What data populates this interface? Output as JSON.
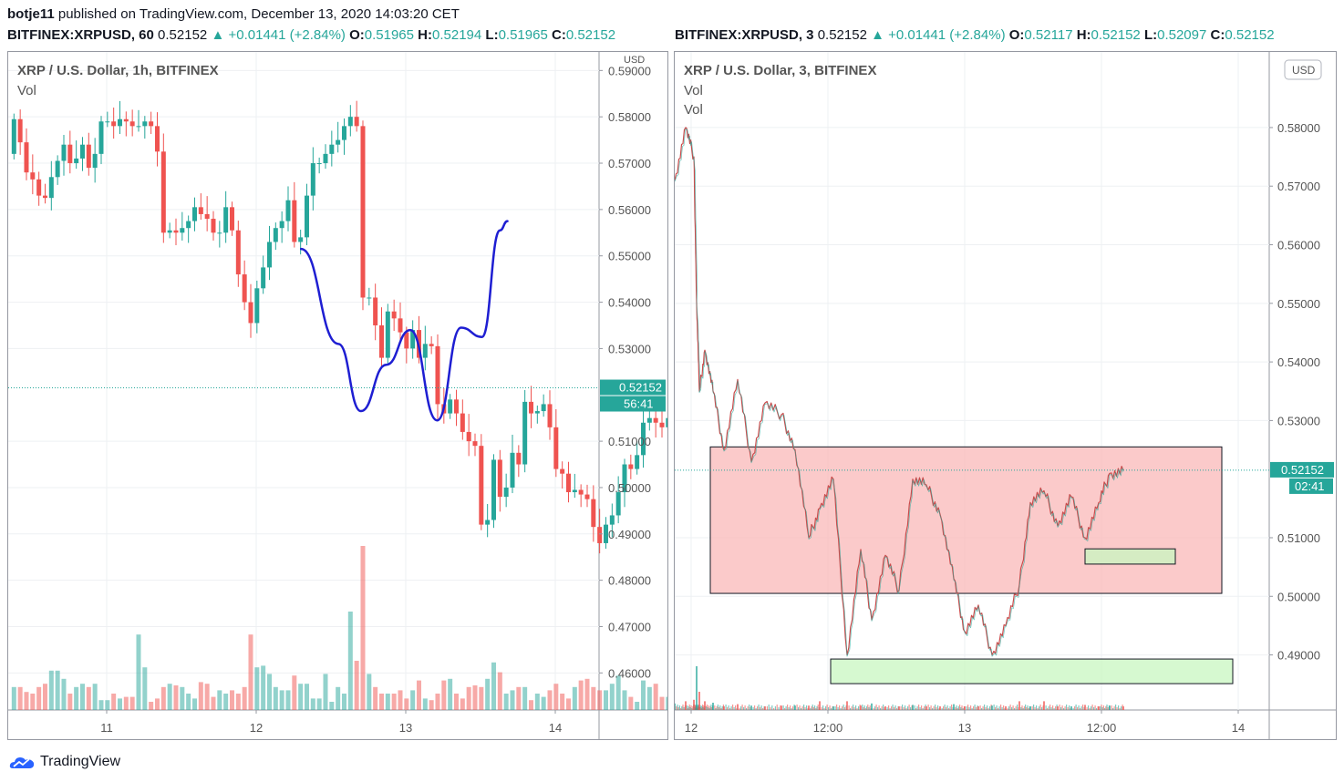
{
  "header": {
    "user": "botje11",
    "published_text": "published on TradingView.com, December 13, 2020 14:03:20 CET"
  },
  "footer": {
    "brand": "TradingView"
  },
  "left": {
    "ticker": {
      "symbol": "BITFINEX:XRPUSD, 60",
      "price": "0.52152",
      "change": "+0.01441 (+2.84%)",
      "o": "0.51965",
      "h": "0.52194",
      "l": "0.51965",
      "c": "0.52152"
    },
    "title": "XRP / U.S. Dollar, 1h, BITFINEX",
    "vol_label": "Vol",
    "currency": "USD",
    "price_label": "0.52152",
    "countdown": "56:41"
  },
  "right": {
    "ticker": {
      "symbol": "BITFINEX:XRPUSD, 3",
      "price": "0.52152",
      "change": "+0.01441 (+2.84%)",
      "o": "0.52117",
      "h": "0.52152",
      "l": "0.52097",
      "c": "0.52152"
    },
    "title": "XRP / U.S. Dollar, 3, BITFINEX",
    "vol_label": "Vol",
    "vol_label2": "Vol",
    "currency": "USD",
    "price_label": "0.52152",
    "countdown": "02:41"
  },
  "colors": {
    "up": "#26a69a",
    "down": "#ef5350",
    "drawing": "#1e1ed2",
    "resistance": "#f9b8b8",
    "support": "#c8f7c0"
  },
  "chart_data": [
    {
      "type": "candlestick",
      "title": "XRP / U.S. Dollar, 1h, BITFINEX",
      "ylabel": "USD",
      "ylim": [
        0.452,
        0.594
      ],
      "yticks": [
        "0.59000",
        "0.58000",
        "0.57000",
        "0.56000",
        "0.55000",
        "0.54000",
        "0.53000",
        "0.51000",
        "0.50000",
        "0.49000",
        "0.48000",
        "0.47000",
        "0.46000"
      ],
      "xticks": [
        {
          "label": "11",
          "x": 11
        },
        {
          "label": "12",
          "x": 12
        },
        {
          "label": "13",
          "x": 13
        },
        {
          "label": "14",
          "x": 14
        }
      ],
      "x_start": 10.38,
      "x_step_days": 0.041667,
      "closes": [
        0.5795,
        0.5745,
        0.568,
        0.5665,
        0.563,
        0.5625,
        0.567,
        0.5705,
        0.574,
        0.57,
        0.571,
        0.574,
        0.569,
        0.572,
        0.579,
        0.579,
        0.578,
        0.5795,
        0.579,
        0.578,
        0.578,
        0.579,
        0.578,
        0.5725,
        0.555,
        0.5555,
        0.555,
        0.556,
        0.5575,
        0.5605,
        0.559,
        0.558,
        0.555,
        0.555,
        0.5605,
        0.5555,
        0.546,
        0.54,
        0.5355,
        0.543,
        0.5475,
        0.553,
        0.556,
        0.5575,
        0.562,
        0.553,
        0.554,
        0.563,
        0.57,
        0.57,
        0.572,
        0.574,
        0.575,
        0.578,
        0.58,
        0.578,
        0.541,
        0.541,
        0.535,
        0.528,
        0.538,
        0.5365,
        0.5335,
        0.53,
        0.534,
        0.528,
        0.531,
        0.5305,
        0.518,
        0.516,
        0.519,
        0.516,
        0.512,
        0.51,
        0.509,
        0.492,
        0.493,
        0.506,
        0.498,
        0.5,
        0.5075,
        0.505,
        0.5185,
        0.516,
        0.5165,
        0.518,
        0.513,
        0.504,
        0.503,
        0.499,
        0.4995,
        0.4985,
        0.4975,
        0.4915,
        0.488,
        0.492,
        0.494,
        0.499,
        0.505,
        0.504,
        0.507,
        0.514,
        0.515,
        0.514,
        0.513,
        0.515,
        0.5215
      ],
      "volume_unit": "relative",
      "volume": [
        0.14,
        0.14,
        0.11,
        0.1,
        0.14,
        0.16,
        0.24,
        0.24,
        0.19,
        0.1,
        0.14,
        0.16,
        0.14,
        0.16,
        0.06,
        0.06,
        0.1,
        0.07,
        0.08,
        0.08,
        0.46,
        0.26,
        0.05,
        0.07,
        0.14,
        0.16,
        0.15,
        0.14,
        0.1,
        0.07,
        0.17,
        0.16,
        0.08,
        0.12,
        0.1,
        0.12,
        0.1,
        0.14,
        0.46,
        0.26,
        0.27,
        0.22,
        0.14,
        0.12,
        0.12,
        0.21,
        0.16,
        0.16,
        0.07,
        0.07,
        0.22,
        0.05,
        0.14,
        0.1,
        0.6,
        0.3,
        1.0,
        0.22,
        0.14,
        0.1,
        0.1,
        0.1,
        0.12,
        0.07,
        0.12,
        0.18,
        0.07,
        0.06,
        0.1,
        0.18,
        0.19,
        0.1,
        0.07,
        0.14,
        0.15,
        0.14,
        0.19,
        0.29,
        0.23,
        0.1,
        0.12,
        0.14,
        0.14,
        0.06,
        0.1,
        0.08,
        0.12,
        0.16,
        0.1,
        0.07,
        0.14,
        0.18,
        0.19,
        0.14,
        0.12,
        0.12,
        0.16,
        0.21,
        0.12,
        0.08,
        0.05,
        0.18,
        0.14,
        0.16,
        0.08,
        0.08,
        0.14
      ],
      "annotations": [
        {
          "type": "freehand",
          "points": [
            [
              12.3,
              0.5515
            ],
            [
              12.55,
              0.531
            ],
            [
              12.7,
              0.5165
            ],
            [
              12.87,
              0.5265
            ],
            [
              13.03,
              0.534
            ],
            [
              13.21,
              0.5145
            ],
            [
              13.37,
              0.5345
            ],
            [
              13.51,
              0.5325
            ],
            [
              13.63,
              0.5555
            ],
            [
              13.68,
              0.5575
            ]
          ]
        }
      ]
    },
    {
      "type": "line",
      "title": "XRP / U.S. Dollar, 3, BITFINEX",
      "ylabel": "USD",
      "ylim": [
        0.4806,
        0.5929
      ],
      "yticks": [
        "0.58000",
        "0.57000",
        "0.56000",
        "0.55000",
        "0.54000",
        "0.53000",
        "0.51000",
        "0.50000",
        "0.49000"
      ],
      "xticks": [
        {
          "label": "12",
          "x": 12
        },
        {
          "label": "12:00",
          "x": 12.5
        },
        {
          "label": "13",
          "x": 13
        },
        {
          "label": "12:00",
          "x": 13.5
        },
        {
          "label": "14",
          "x": 14
        }
      ],
      "x": [
        11.94,
        11.98,
        12.01,
        12.02,
        12.03,
        12.05,
        12.08,
        12.12,
        12.17,
        12.22,
        12.27,
        12.33,
        12.38,
        12.43,
        12.47,
        12.52,
        12.57,
        12.62,
        12.66,
        12.71,
        12.76,
        12.81,
        12.86,
        12.91,
        12.96,
        13.0,
        13.05,
        13.1,
        13.15,
        13.2,
        13.24,
        13.29,
        13.34,
        13.39,
        13.44,
        13.49,
        13.53,
        13.58
      ],
      "y": [
        0.571,
        0.58,
        0.575,
        0.55,
        0.535,
        0.542,
        0.535,
        0.525,
        0.537,
        0.523,
        0.533,
        0.531,
        0.525,
        0.51,
        0.515,
        0.52,
        0.49,
        0.508,
        0.496,
        0.507,
        0.501,
        0.52,
        0.519,
        0.514,
        0.503,
        0.494,
        0.4985,
        0.49,
        0.495,
        0.502,
        0.516,
        0.518,
        0.512,
        0.517,
        0.51,
        0.516,
        0.521,
        0.5215
      ],
      "volume_unit": "relative",
      "volume": [
        0.09,
        0.12,
        0.14,
        0.6,
        0.25,
        0.12,
        0.1,
        0.05,
        0.08,
        0.06,
        0.05,
        0.06,
        0.06,
        0.06,
        0.12,
        0.05,
        0.12,
        0.06,
        0.09,
        0.05,
        0.05,
        0.07,
        0.05,
        0.05,
        0.08,
        0.05,
        0.05,
        0.06,
        0.05,
        0.12,
        0.05,
        0.12,
        0.05,
        0.05,
        0.07,
        0.05,
        0.06,
        0.05
      ],
      "zones": [
        {
          "kind": "resistance",
          "x0": 12.07,
          "x1": 13.94,
          "y0": 0.5005,
          "y1": 0.5255
        },
        {
          "kind": "support",
          "x0": 12.51,
          "x1": 13.98,
          "y0": 0.4851,
          "y1": 0.4893
        },
        {
          "kind": "support",
          "x0": 13.44,
          "x1": 13.77,
          "y0": 0.5055,
          "y1": 0.5081
        }
      ]
    }
  ]
}
